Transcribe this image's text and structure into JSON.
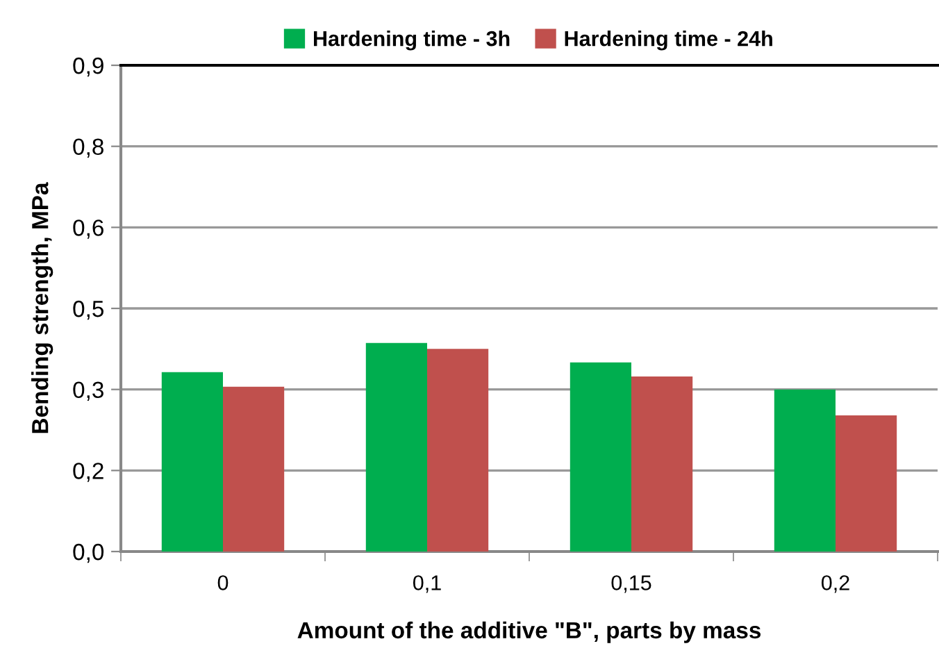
{
  "chart_data": {
    "type": "bar",
    "xlabel": "Amount of the additive \"B\", parts by mass",
    "ylabel": "Bending strength, MPa",
    "categories": [
      "0",
      "0,1",
      "0,15",
      "0,2"
    ],
    "series": [
      {
        "name": "Hardening time - 3h",
        "color": "#00ae4f",
        "values": [
          0.332,
          0.386,
          0.35,
          0.3
        ]
      },
      {
        "name": "Hardening time - 24h",
        "color": "#c0504d",
        "values": [
          0.305,
          0.375,
          0.324,
          0.252
        ]
      }
    ],
    "ylim": [
      0,
      0.9
    ],
    "yticks": [
      {
        "value": 0,
        "label": "0,0"
      },
      {
        "value": 0.15,
        "label": "0,2"
      },
      {
        "value": 0.3,
        "label": "0,3"
      },
      {
        "value": 0.45,
        "label": "0,5"
      },
      {
        "value": 0.6,
        "label": "0,6"
      },
      {
        "value": 0.75,
        "label": "0,8"
      },
      {
        "value": 0.9,
        "label": "0,9"
      }
    ],
    "grid": "y",
    "legend": "top"
  }
}
